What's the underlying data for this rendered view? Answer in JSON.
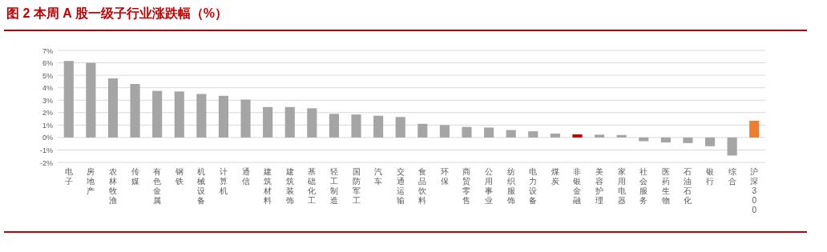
{
  "chart_data": {
    "type": "bar",
    "title": "图 2  本周 A 股一级子行业涨跌幅（%）",
    "categories": [
      "电子",
      "房地产",
      "农林牧渔",
      "传媒",
      "有色金属",
      "钢铁",
      "机械设备",
      "计算机",
      "通信",
      "建筑材料",
      "建筑装饰",
      "基础化工",
      "轻工制造",
      "国防军工",
      "汽车",
      "交通运输",
      "食品饮料",
      "环保",
      "商贸零售",
      "公用事业",
      "纺织服饰",
      "电力设备",
      "煤炭",
      "非银金融",
      "美容护理",
      "家用电器",
      "社会服务",
      "医药生物",
      "石油石化",
      "银行",
      "综合",
      "沪深300"
    ],
    "values": [
      6.15,
      6.0,
      4.75,
      4.3,
      3.75,
      3.7,
      3.5,
      3.35,
      3.05,
      2.45,
      2.45,
      2.35,
      1.9,
      1.85,
      1.75,
      1.65,
      1.1,
      1.0,
      0.85,
      0.8,
      0.6,
      0.5,
      0.32,
      0.25,
      0.23,
      0.2,
      -0.3,
      -0.4,
      -0.45,
      -0.7,
      -1.45,
      1.35
    ],
    "colors": [
      "#a5a5a5",
      "#a5a5a5",
      "#a5a5a5",
      "#a5a5a5",
      "#a5a5a5",
      "#a5a5a5",
      "#a5a5a5",
      "#a5a5a5",
      "#a5a5a5",
      "#a5a5a5",
      "#a5a5a5",
      "#a5a5a5",
      "#a5a5a5",
      "#a5a5a5",
      "#a5a5a5",
      "#a5a5a5",
      "#a5a5a5",
      "#a5a5a5",
      "#a5a5a5",
      "#a5a5a5",
      "#a5a5a5",
      "#a5a5a5",
      "#a5a5a5",
      "#c00000",
      "#a5a5a5",
      "#a5a5a5",
      "#a5a5a5",
      "#a5a5a5",
      "#a5a5a5",
      "#a5a5a5",
      "#a5a5a5",
      "#ed7d31"
    ],
    "ylim": [
      -2,
      7
    ],
    "yticks": [
      {
        "value": -2,
        "label": "-2%"
      },
      {
        "value": -1,
        "label": "-1%"
      },
      {
        "value": 0,
        "label": "0%"
      },
      {
        "value": 1,
        "label": "1%"
      },
      {
        "value": 2,
        "label": "2%"
      },
      {
        "value": 3,
        "label": "3%"
      },
      {
        "value": 4,
        "label": "4%"
      },
      {
        "value": 5,
        "label": "5%"
      },
      {
        "value": 6,
        "label": "6%"
      },
      {
        "value": 7,
        "label": "7%"
      }
    ],
    "grid": "y"
  }
}
